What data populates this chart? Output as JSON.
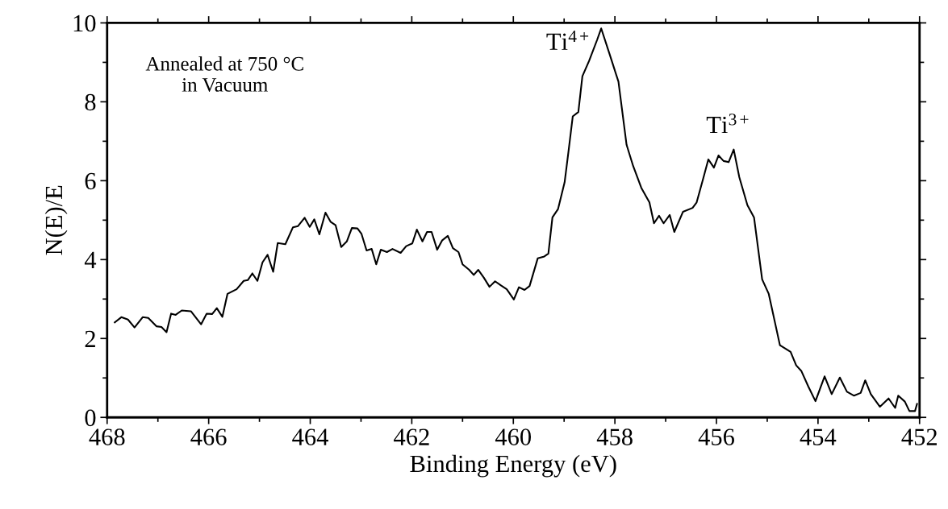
{
  "chart_data": {
    "type": "line",
    "xlabel": "Binding Energy (eV)",
    "ylabel": "N(E)/E",
    "xlim": [
      468,
      452
    ],
    "ylim": [
      0,
      10
    ],
    "xticks": [
      468,
      {
        "value": 467,
        "label": null
      },
      466,
      {
        "value": 465,
        "label": null
      },
      464,
      {
        "value": 463,
        "label": null
      },
      462,
      {
        "value": 461,
        "label": null
      },
      460,
      {
        "value": 459,
        "label": null
      },
      458,
      {
        "value": 457,
        "label": null
      },
      456,
      {
        "value": 455,
        "label": null
      },
      454,
      {
        "value": 453,
        "label": null
      },
      452
    ],
    "yticks": [
      0,
      {
        "value": 1,
        "label": null
      },
      2,
      {
        "value": 3,
        "label": null
      },
      4,
      {
        "value": 5,
        "label": null
      },
      6,
      {
        "value": 7,
        "label": null
      },
      8,
      {
        "value": 9,
        "label": null
      },
      10
    ],
    "grid": false,
    "marker": "none",
    "line_style": "solid",
    "annotations": [
      "Annealed at 750 °C\nin Vacuum",
      {
        "text": "Ti$^{4+}$",
        "x": 458.27,
        "y": 9.86
      },
      {
        "text": "Ti$^{3+}$",
        "x": 455.66,
        "y": 6.79
      }
    ],
    "series": [
      {
        "color": "#000000",
        "x": [
          467.85,
          467.72,
          467.59,
          467.46,
          467.3,
          467.19,
          467.03,
          466.93,
          466.83,
          466.74,
          466.65,
          466.53,
          466.35,
          466.15,
          466.04,
          465.93,
          465.84,
          465.73,
          465.63,
          465.45,
          465.31,
          465.23,
          465.14,
          465.04,
          464.94,
          464.84,
          464.73,
          464.64,
          464.49,
          464.34,
          464.24,
          464.11,
          464.01,
          463.92,
          463.82,
          463.7,
          463.6,
          463.5,
          463.39,
          463.28,
          463.18,
          463.07,
          462.99,
          462.89,
          462.79,
          462.7,
          462.61,
          462.49,
          462.38,
          462.22,
          462.11,
          461.99,
          461.9,
          461.79,
          461.7,
          461.61,
          461.5,
          461.4,
          461.29,
          461.19,
          461.08,
          461.0,
          460.87,
          460.78,
          460.69,
          460.58,
          460.47,
          460.36,
          460.25,
          460.13,
          459.99,
          459.89,
          459.78,
          459.68,
          459.52,
          459.39,
          459.31,
          459.23,
          459.12,
          458.99,
          458.91,
          458.83,
          458.72,
          458.64,
          458.51,
          458.35,
          458.27,
          458.11,
          457.93,
          457.77,
          457.64,
          457.48,
          457.32,
          457.23,
          457.13,
          457.04,
          456.92,
          456.83,
          456.66,
          456.47,
          456.39,
          456.26,
          456.16,
          456.05,
          455.96,
          455.86,
          455.76,
          455.66,
          455.55,
          455.39,
          455.26,
          455.1,
          454.97,
          454.75,
          454.54,
          454.43,
          454.33,
          454.19,
          454.05,
          453.87,
          453.73,
          453.57,
          453.43,
          453.29,
          453.16,
          453.07,
          452.96,
          452.78,
          452.61,
          452.48,
          452.42,
          452.29,
          452.2,
          452.09,
          452.05
        ],
        "values": [
          2.41,
          2.54,
          2.48,
          2.28,
          2.54,
          2.52,
          2.31,
          2.29,
          2.16,
          2.63,
          2.6,
          2.71,
          2.69,
          2.36,
          2.63,
          2.62,
          2.77,
          2.55,
          3.13,
          3.25,
          3.46,
          3.48,
          3.65,
          3.46,
          3.93,
          4.12,
          3.69,
          4.42,
          4.39,
          4.82,
          4.85,
          5.06,
          4.83,
          5.02,
          4.64,
          5.19,
          4.96,
          4.87,
          4.32,
          4.46,
          4.8,
          4.79,
          4.65,
          4.23,
          4.27,
          3.88,
          4.25,
          4.19,
          4.27,
          4.17,
          4.34,
          4.41,
          4.76,
          4.46,
          4.7,
          4.7,
          4.25,
          4.49,
          4.6,
          4.29,
          4.19,
          3.88,
          3.74,
          3.61,
          3.74,
          3.54,
          3.31,
          3.45,
          3.35,
          3.25,
          2.99,
          3.3,
          3.23,
          3.33,
          4.03,
          4.08,
          4.15,
          5.07,
          5.28,
          5.96,
          6.78,
          7.63,
          7.74,
          8.65,
          9.03,
          9.57,
          9.86,
          9.23,
          8.51,
          6.91,
          6.37,
          5.82,
          5.45,
          4.92,
          5.11,
          4.92,
          5.13,
          4.7,
          5.21,
          5.31,
          5.45,
          6.06,
          6.54,
          6.33,
          6.64,
          6.5,
          6.47,
          6.79,
          6.09,
          5.38,
          5.07,
          3.5,
          3.13,
          1.83,
          1.66,
          1.32,
          1.18,
          0.78,
          0.41,
          1.04,
          0.59,
          1.01,
          0.65,
          0.55,
          0.62,
          0.94,
          0.59,
          0.27,
          0.48,
          0.24,
          0.55,
          0.4,
          0.16,
          0.16,
          0.34
        ]
      }
    ]
  }
}
